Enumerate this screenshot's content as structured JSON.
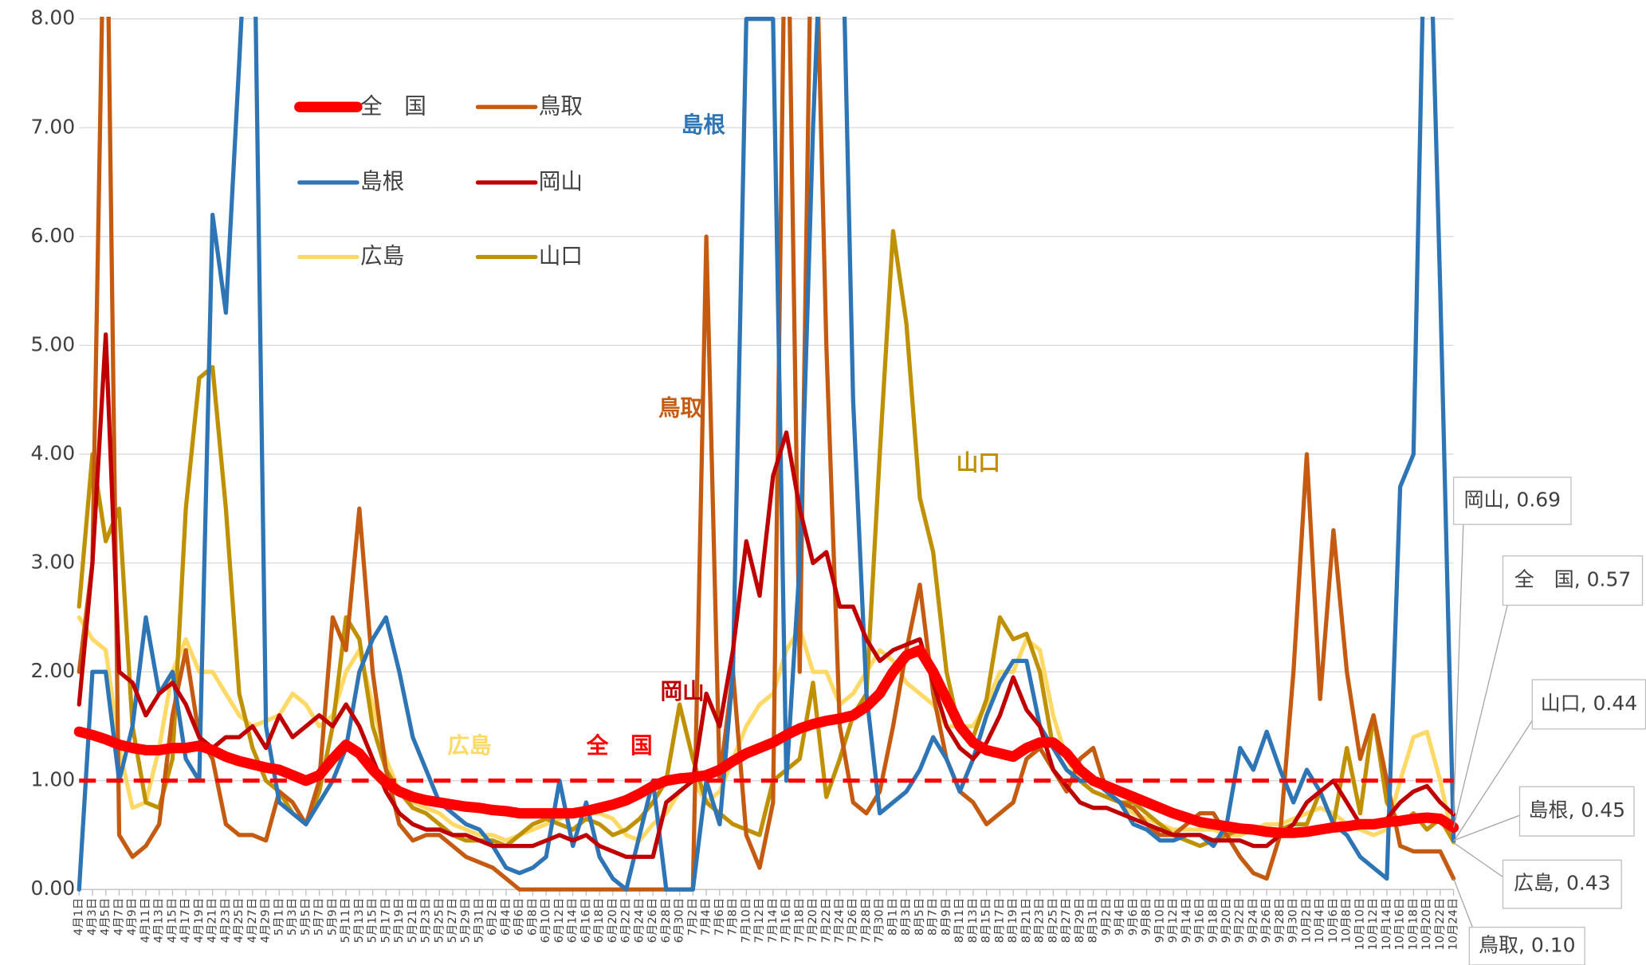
{
  "chart_data": {
    "type": "line",
    "annotations": [
      {
        "text": "島根",
        "color": "#2e75b6"
      },
      {
        "text": "鳥取",
        "color": "#c55a11"
      },
      {
        "text": "山口",
        "color": "#bf9000"
      },
      {
        "text": "岡山",
        "color": "#c00000"
      },
      {
        "text": "広島",
        "color": "#ffd966"
      },
      {
        "text": "全　国",
        "color": "#ff0000"
      }
    ],
    "ylim": [
      0,
      8
    ],
    "yticks": [
      {
        "value": 0,
        "label": "0.00"
      },
      {
        "value": 1,
        "label": "1.00"
      },
      {
        "value": 2,
        "label": "2.00"
      },
      {
        "value": 3,
        "label": "3.00"
      },
      {
        "value": 4,
        "label": "4.00"
      },
      {
        "value": 5,
        "label": "5.00"
      },
      {
        "value": 6,
        "label": "6.00"
      },
      {
        "value": 7,
        "label": "7.00"
      },
      {
        "value": 8,
        "label": "8.00"
      }
    ],
    "grid": true,
    "reference_line": {
      "value": 1,
      "color": "#ff0000"
    },
    "categories": [
      "4月1日",
      "4月3日",
      "4月5日",
      "4月7日",
      "4月9日",
      "4月11日",
      "4月13日",
      "4月15日",
      "4月17日",
      "4月19日",
      "4月21日",
      "4月23日",
      "4月25日",
      "4月27日",
      "4月29日",
      "5月1日",
      "5月3日",
      "5月5日",
      "5月7日",
      "5月9日",
      "5月11日",
      "5月13日",
      "5月15日",
      "5月17日",
      "5月19日",
      "5月21日",
      "5月23日",
      "5月25日",
      "5月27日",
      "5月29日",
      "5月31日",
      "6月2日",
      "6月4日",
      "6月6日",
      "6月8日",
      "6月10日",
      "6月12日",
      "6月14日",
      "6月16日",
      "6月18日",
      "6月20日",
      "6月22日",
      "6月24日",
      "6月26日",
      "6月28日",
      "6月30日",
      "7月2日",
      "7月4日",
      "7月6日",
      "7月8日",
      "7月10日",
      "7月12日",
      "7月14日",
      "7月16日",
      "7月18日",
      "7月20日",
      "7月22日",
      "7月24日",
      "7月26日",
      "7月28日",
      "7月30日",
      "8月1日",
      "8月3日",
      "8月5日",
      "8月7日",
      "8月9日",
      "8月11日",
      "8月13日",
      "8月15日",
      "8月17日",
      "8月19日",
      "8月21日",
      "8月23日",
      "8月25日",
      "8月27日",
      "8月29日",
      "8月31日",
      "9月2日",
      "9月4日",
      "9月6日",
      "9月8日",
      "9月10日",
      "9月12日",
      "9月14日",
      "9月16日",
      "9月18日",
      "9月20日",
      "9月22日",
      "9月24日",
      "9月26日",
      "9月28日",
      "9月30日",
      "10月2日",
      "10月4日",
      "10月6日",
      "10月8日",
      "10月10日",
      "10月12日",
      "10月14日",
      "10月16日",
      "10月18日",
      "10月20日",
      "10月22日",
      "10月24日"
    ],
    "series": [
      {
        "name": "全　国",
        "color": "#ff0000",
        "end_label": "全　国, 0.57",
        "values": [
          1.45,
          1.42,
          1.38,
          1.33,
          1.3,
          1.28,
          1.28,
          1.3,
          1.3,
          1.32,
          1.28,
          1.22,
          1.18,
          1.15,
          1.12,
          1.1,
          1.05,
          1.0,
          1.05,
          1.2,
          1.33,
          1.25,
          1.1,
          0.98,
          0.9,
          0.85,
          0.82,
          0.8,
          0.78,
          0.76,
          0.75,
          0.73,
          0.72,
          0.7,
          0.7,
          0.7,
          0.7,
          0.7,
          0.72,
          0.75,
          0.78,
          0.82,
          0.88,
          0.95,
          1.0,
          1.02,
          1.03,
          1.05,
          1.1,
          1.18,
          1.25,
          1.3,
          1.35,
          1.42,
          1.48,
          1.52,
          1.55,
          1.57,
          1.6,
          1.68,
          1.8,
          2.0,
          2.15,
          2.2,
          2.0,
          1.75,
          1.5,
          1.35,
          1.28,
          1.25,
          1.22,
          1.3,
          1.35,
          1.35,
          1.25,
          1.1,
          1.0,
          0.95,
          0.9,
          0.85,
          0.8,
          0.75,
          0.7,
          0.66,
          0.62,
          0.6,
          0.58,
          0.56,
          0.55,
          0.53,
          0.52,
          0.52,
          0.53,
          0.55,
          0.57,
          0.58,
          0.6,
          0.6,
          0.62,
          0.63,
          0.65,
          0.66,
          0.65,
          0.57
        ]
      },
      {
        "name": "鳥取",
        "color": "#c55a11",
        "end_label": "鳥取, 0.10",
        "values": [
          2.0,
          3.0,
          10,
          0.5,
          0.3,
          0.4,
          0.6,
          1.6,
          2.2,
          1.4,
          1.2,
          0.6,
          0.5,
          0.5,
          0.45,
          0.9,
          0.8,
          0.6,
          1.0,
          2.5,
          2.2,
          3.5,
          2.0,
          1.1,
          0.6,
          0.45,
          0.5,
          0.5,
          0.4,
          0.3,
          0.25,
          0.2,
          0.1,
          0,
          0,
          0,
          0,
          0,
          0,
          0,
          0,
          0,
          0,
          0,
          0,
          0,
          0,
          6.0,
          1.0,
          2.0,
          0.5,
          0.2,
          0.8,
          10,
          2.0,
          10,
          5.0,
          1.5,
          0.8,
          0.7,
          0.9,
          1.5,
          2.2,
          2.8,
          1.8,
          1.2,
          0.9,
          0.8,
          0.6,
          0.7,
          0.8,
          1.2,
          1.3,
          1.1,
          0.9,
          1.2,
          1.3,
          0.9,
          0.8,
          0.75,
          0.6,
          0.5,
          0.5,
          0.6,
          0.7,
          0.7,
          0.5,
          0.3,
          0.15,
          0.1,
          0.5,
          2.0,
          4.0,
          1.75,
          3.3,
          2.0,
          1.2,
          1.6,
          1.0,
          0.4,
          0.35,
          0.35,
          0.35,
          0.1
        ]
      },
      {
        "name": "島根",
        "color": "#2e75b6",
        "end_label": "島根, 0.45",
        "values": [
          0,
          2.0,
          2.0,
          1.0,
          1.5,
          2.5,
          1.8,
          2.0,
          1.2,
          1.0,
          6.2,
          5.3,
          7.6,
          10,
          1.5,
          0.8,
          0.7,
          0.6,
          0.8,
          1.0,
          1.3,
          2.0,
          2.3,
          2.5,
          2.0,
          1.4,
          1.1,
          0.8,
          0.7,
          0.6,
          0.55,
          0.4,
          0.2,
          0.15,
          0.2,
          0.3,
          1.0,
          0.4,
          0.8,
          0.3,
          0.1,
          0,
          0.5,
          1.0,
          0,
          0,
          0,
          1.0,
          0.6,
          2.0,
          8.0,
          8.0,
          8.0,
          1.0,
          3.0,
          7.0,
          10,
          10,
          4.5,
          1.8,
          0.7,
          0.8,
          0.9,
          1.1,
          1.4,
          1.2,
          0.9,
          1.2,
          1.6,
          1.9,
          2.1,
          2.1,
          1.5,
          1.3,
          1.1,
          1.0,
          1.0,
          0.9,
          0.8,
          0.6,
          0.55,
          0.45,
          0.45,
          0.5,
          0.5,
          0.4,
          0.6,
          1.3,
          1.1,
          1.45,
          1.1,
          0.8,
          1.1,
          0.9,
          0.6,
          0.5,
          0.3,
          0.2,
          0.1,
          3.7,
          4.0,
          10,
          5.5,
          0.45
        ]
      },
      {
        "name": "岡山",
        "color": "#c00000",
        "end_label": "岡山, 0.69",
        "values": [
          1.7,
          3.0,
          5.1,
          2.0,
          1.9,
          1.6,
          1.8,
          1.9,
          1.7,
          1.4,
          1.3,
          1.4,
          1.4,
          1.5,
          1.3,
          1.6,
          1.4,
          1.5,
          1.6,
          1.5,
          1.7,
          1.5,
          1.2,
          0.9,
          0.7,
          0.6,
          0.55,
          0.55,
          0.5,
          0.5,
          0.45,
          0.4,
          0.4,
          0.4,
          0.4,
          0.45,
          0.5,
          0.45,
          0.5,
          0.4,
          0.35,
          0.3,
          0.3,
          0.3,
          0.8,
          0.9,
          1.0,
          1.8,
          1.5,
          2.2,
          3.2,
          2.7,
          3.8,
          4.2,
          3.5,
          3.0,
          3.1,
          2.6,
          2.6,
          2.3,
          2.1,
          2.2,
          2.25,
          2.3,
          1.9,
          1.5,
          1.3,
          1.2,
          1.35,
          1.6,
          1.95,
          1.65,
          1.5,
          1.1,
          0.95,
          0.8,
          0.75,
          0.75,
          0.7,
          0.65,
          0.6,
          0.55,
          0.5,
          0.5,
          0.5,
          0.45,
          0.45,
          0.45,
          0.4,
          0.4,
          0.5,
          0.6,
          0.8,
          0.9,
          1.0,
          0.8,
          0.6,
          0.6,
          0.65,
          0.8,
          0.9,
          0.95,
          0.8,
          0.69
        ]
      },
      {
        "name": "広島",
        "color": "#ffd966",
        "end_label": "広島, 0.43",
        "values": [
          2.5,
          2.3,
          2.2,
          1.3,
          0.75,
          0.8,
          1.3,
          2.0,
          2.3,
          2.0,
          2.0,
          1.8,
          1.6,
          1.5,
          1.55,
          1.6,
          1.8,
          1.7,
          1.5,
          1.6,
          2.0,
          2.2,
          1.7,
          1.2,
          0.9,
          0.8,
          0.75,
          0.7,
          0.6,
          0.55,
          0.5,
          0.5,
          0.45,
          0.5,
          0.55,
          0.6,
          0.65,
          0.7,
          0.7,
          0.7,
          0.65,
          0.5,
          0.45,
          0.6,
          0.7,
          0.9,
          1.0,
          0.8,
          0.9,
          1.2,
          1.5,
          1.7,
          1.8,
          2.2,
          2.4,
          2.0,
          2.0,
          1.7,
          1.8,
          2.0,
          2.2,
          2.1,
          1.9,
          1.8,
          1.7,
          1.5,
          1.5,
          1.5,
          1.7,
          2.0,
          2.0,
          2.3,
          2.2,
          1.6,
          1.2,
          1.0,
          0.9,
          0.85,
          0.8,
          0.7,
          0.65,
          0.6,
          0.55,
          0.55,
          0.55,
          0.55,
          0.5,
          0.5,
          0.55,
          0.6,
          0.6,
          0.65,
          0.7,
          0.75,
          0.7,
          0.6,
          0.55,
          0.5,
          0.55,
          1.0,
          1.4,
          1.45,
          1.0,
          0.43
        ]
      },
      {
        "name": "山口",
        "color": "#bf9000",
        "end_label": "山口, 0.44",
        "values": [
          2.6,
          4.0,
          3.2,
          3.5,
          1.5,
          0.8,
          0.75,
          1.2,
          3.5,
          4.7,
          4.8,
          3.5,
          1.8,
          1.3,
          1.0,
          0.9,
          0.7,
          0.6,
          0.9,
          1.5,
          2.5,
          2.3,
          1.5,
          1.1,
          0.9,
          0.75,
          0.7,
          0.6,
          0.5,
          0.45,
          0.45,
          0.45,
          0.4,
          0.5,
          0.6,
          0.65,
          0.6,
          0.55,
          0.65,
          0.6,
          0.5,
          0.55,
          0.65,
          0.8,
          1.0,
          1.7,
          1.2,
          0.8,
          0.7,
          0.6,
          0.55,
          0.5,
          1.0,
          1.1,
          1.2,
          1.9,
          0.85,
          1.2,
          1.6,
          1.8,
          4.0,
          6.05,
          5.2,
          3.6,
          3.1,
          2.0,
          1.45,
          1.4,
          1.75,
          2.5,
          2.3,
          2.35,
          2.0,
          1.3,
          1.1,
          1.0,
          0.9,
          0.85,
          0.8,
          0.8,
          0.7,
          0.6,
          0.5,
          0.45,
          0.4,
          0.45,
          0.5,
          0.55,
          0.55,
          0.5,
          0.55,
          0.6,
          0.6,
          0.9,
          0.6,
          1.3,
          0.7,
          1.6,
          0.8,
          0.6,
          0.7,
          0.55,
          0.65,
          0.44
        ]
      }
    ]
  }
}
